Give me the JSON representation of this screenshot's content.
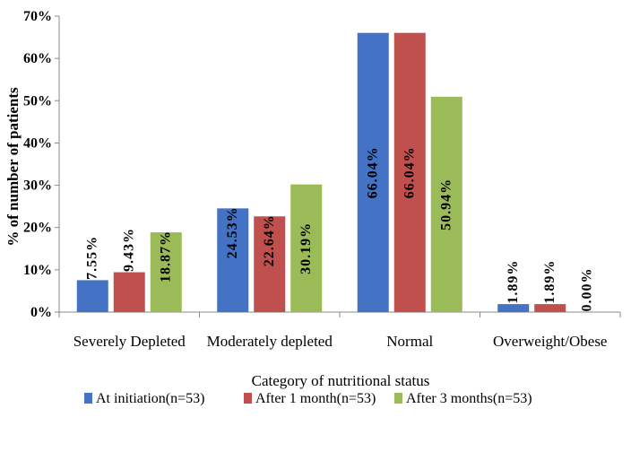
{
  "chart_data": {
    "type": "bar",
    "title": "",
    "xlabel": "Category of nutritional status",
    "ylabel": "% of number of patients",
    "ylim": [
      0,
      70
    ],
    "yticks": [
      0,
      10,
      20,
      30,
      40,
      50,
      60,
      70
    ],
    "ytick_labels": [
      "0%",
      "10%",
      "20%",
      "30%",
      "40%",
      "50%",
      "60%",
      "70%"
    ],
    "grid": false,
    "legend_position": "bottom",
    "categories": [
      "Severely Depleted",
      "Moderately depleted",
      "Normal",
      "Overweight/Obese"
    ],
    "series": [
      {
        "name": "At initiation(n=53)",
        "color": "#4472C4",
        "values": [
          7.55,
          24.53,
          66.04,
          1.89
        ],
        "labels": [
          "7.55%",
          "24.53%",
          "66.04%",
          "1.89%"
        ]
      },
      {
        "name": "After 1 month(n=53)",
        "color": "#C0504D",
        "values": [
          9.43,
          22.64,
          66.04,
          1.89
        ],
        "labels": [
          "9.43%",
          "22.64%",
          "66.04%",
          "1.89%"
        ]
      },
      {
        "name": "After 3 months(n=53)",
        "color": "#9BBB59",
        "values": [
          18.87,
          30.19,
          50.94,
          0.0
        ],
        "labels": [
          "18.87%",
          "30.19%",
          "50.94%",
          "0.00%"
        ]
      }
    ]
  }
}
